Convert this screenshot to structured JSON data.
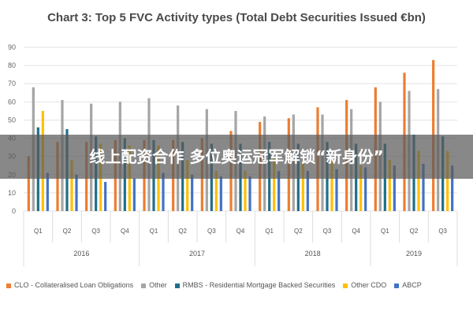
{
  "chart_data": {
    "type": "bar",
    "title": "Chart 3: Top 5 FVC Activity types (Total Debt Securities Issued €bn)",
    "ylim": [
      0,
      90
    ],
    "yticks": [
      0,
      10,
      20,
      30,
      40,
      50,
      60,
      70,
      80,
      90
    ],
    "grid": true,
    "legend_position": "bottom",
    "categories": [
      "Q1",
      "Q2",
      "Q3",
      "Q4",
      "Q1",
      "Q2",
      "Q3",
      "Q4",
      "Q1",
      "Q2",
      "Q3",
      "Q4",
      "Q1",
      "Q2",
      "Q3"
    ],
    "years": [
      {
        "label": "2016",
        "quarters": 4
      },
      {
        "label": "2017",
        "quarters": 4
      },
      {
        "label": "2018",
        "quarters": 4
      },
      {
        "label": "2019",
        "quarters": 3
      }
    ],
    "series": [
      {
        "name": "CLO - Collateralised Loan Obligations",
        "color": "#ed7d31",
        "values": [
          30,
          38,
          38,
          39,
          39,
          39,
          40,
          44,
          49,
          51,
          57,
          61,
          68,
          76,
          83
        ]
      },
      {
        "name": "Other",
        "color": "#a5a5a5",
        "values": [
          68,
          61,
          59,
          60,
          62,
          58,
          56,
          55,
          52,
          53,
          53,
          56,
          60,
          66,
          67
        ]
      },
      {
        "name": "RMBS - Residential Mortgage Backed Securities",
        "color": "#1f6f8b",
        "values": [
          46,
          45,
          41,
          40,
          39,
          38,
          37,
          37,
          38,
          37,
          38,
          37,
          37,
          42,
          41
        ]
      },
      {
        "name": "Other CDO",
        "color": "#ffc000",
        "values": [
          55,
          28,
          37,
          36,
          36,
          28,
          22,
          22,
          29,
          26,
          30,
          25,
          28,
          33,
          33
        ]
      },
      {
        "name": "ABCP",
        "color": "#4472c4",
        "values": [
          21,
          20,
          16,
          18,
          21,
          20,
          19,
          19,
          22,
          22,
          23,
          24,
          25,
          26,
          25
        ]
      }
    ]
  },
  "banner": {
    "text": "线上配资合作 多位奥运冠军解锁“新身份”"
  }
}
